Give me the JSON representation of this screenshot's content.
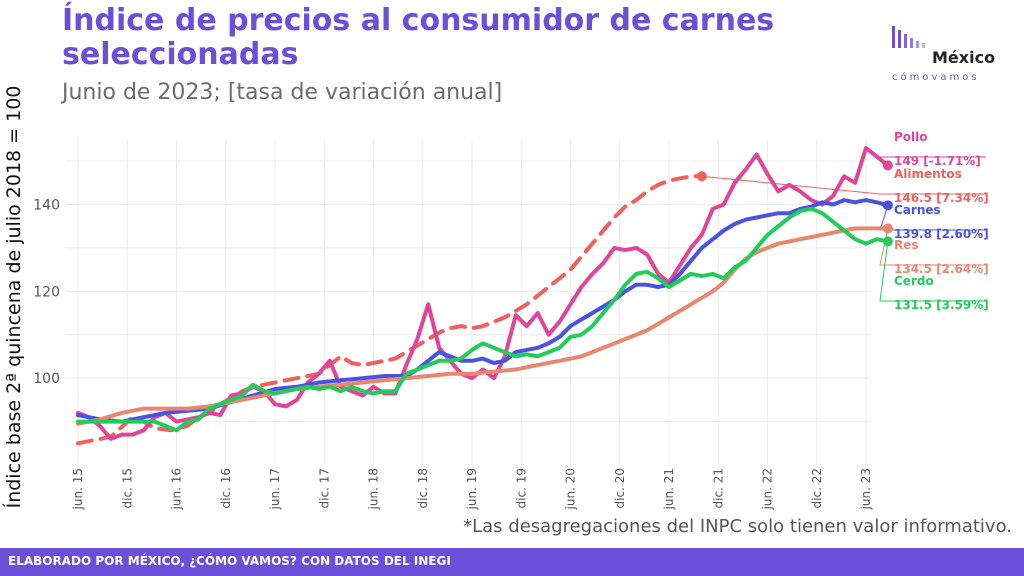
{
  "header": {
    "title": "Índice de precios al consumidor de carnes seleccionadas",
    "subtitle": "Junio de 2023; [tasa de variación anual]"
  },
  "logo": {
    "name": "México",
    "tagline": "cómovamos"
  },
  "note": "*Las desagregaciones del INPC solo tienen valor informativo.",
  "footer": "ELABORADO POR MÉXICO, ¿CÓMO VAMOS? CON DATOS DEL INEGI",
  "chart_data": {
    "type": "line",
    "ylabel": "Índice base 2ª quincena de julio 2018 = 100",
    "ylim": [
      80,
      156
    ],
    "y_ticks": [
      100,
      120,
      140
    ],
    "x_ticks": [
      "jun. 15",
      "dic. 15",
      "jun. 16",
      "dic. 16",
      "jun. 17",
      "dic. 17",
      "jun. 18",
      "dic. 18",
      "jun. 19",
      "dic. 19",
      "jun. 20",
      "dic. 20",
      "jun. 21",
      "dic. 21",
      "jun. 22",
      "dic. 22",
      "jun. 23"
    ],
    "x_start": "jun. 15",
    "x_end": "jun. 23",
    "grid": true,
    "series": [
      {
        "name": "Alimentos",
        "color": "#f0605f",
        "dash": true,
        "end_label": "146.5 [7.34%]",
        "points": [
          [
            0,
            85
          ],
          [
            6,
            86.5
          ],
          [
            10,
            91
          ],
          [
            12,
            90
          ],
          [
            14,
            88.5
          ],
          [
            17,
            88
          ],
          [
            20,
            89
          ],
          [
            22,
            91
          ],
          [
            24,
            92
          ],
          [
            26,
            94
          ],
          [
            28,
            95.5
          ],
          [
            30,
            97
          ],
          [
            32,
            98
          ],
          [
            34,
            98.5
          ],
          [
            36,
            99
          ],
          [
            38,
            99.5
          ],
          [
            40,
            100
          ],
          [
            42,
            100.5
          ],
          [
            44,
            101
          ],
          [
            46,
            103
          ],
          [
            48,
            105
          ],
          [
            50,
            103.5
          ],
          [
            52,
            103
          ],
          [
            54,
            103.5
          ],
          [
            56,
            104
          ],
          [
            58,
            104.5
          ],
          [
            60,
            106
          ],
          [
            62,
            107.5
          ],
          [
            64,
            109
          ],
          [
            66,
            110.5
          ],
          [
            68,
            111.5
          ],
          [
            70,
            112
          ],
          [
            72,
            111.5
          ],
          [
            74,
            112
          ],
          [
            76,
            113
          ],
          [
            78,
            114
          ],
          [
            80,
            115.5
          ],
          [
            82,
            117
          ],
          [
            84,
            119
          ],
          [
            86,
            121
          ],
          [
            88,
            123
          ],
          [
            90,
            125
          ],
          [
            92,
            128
          ],
          [
            94,
            131
          ],
          [
            96,
            134
          ],
          [
            98,
            137
          ],
          [
            100,
            139.5
          ],
          [
            102,
            141
          ],
          [
            104,
            143
          ],
          [
            106,
            144.5
          ],
          [
            108,
            145.5
          ],
          [
            110,
            146
          ],
          [
            112,
            146.5
          ],
          [
            114,
            146.5
          ]
        ]
      },
      {
        "name": "Pollo",
        "color": "#e0459a",
        "end_label": "149 [-1.71%]",
        "points": [
          [
            0,
            92
          ],
          [
            2,
            91
          ],
          [
            4,
            89
          ],
          [
            6,
            86
          ],
          [
            8,
            87
          ],
          [
            10,
            87
          ],
          [
            12,
            88
          ],
          [
            14,
            91
          ],
          [
            16,
            92
          ],
          [
            18,
            90
          ],
          [
            20,
            90.5
          ],
          [
            22,
            91
          ],
          [
            24,
            92
          ],
          [
            26,
            91.5
          ],
          [
            28,
            96
          ],
          [
            30,
            96.5
          ],
          [
            32,
            98
          ],
          [
            34,
            97
          ],
          [
            36,
            94
          ],
          [
            38,
            93.5
          ],
          [
            40,
            95
          ],
          [
            42,
            99
          ],
          [
            44,
            101
          ],
          [
            46,
            104
          ],
          [
            48,
            98
          ],
          [
            50,
            97
          ],
          [
            52,
            96
          ],
          [
            54,
            98
          ],
          [
            56,
            96.5
          ],
          [
            58,
            96.5
          ],
          [
            60,
            103
          ],
          [
            62,
            109
          ],
          [
            64,
            117
          ],
          [
            66,
            107
          ],
          [
            68,
            104
          ],
          [
            70,
            101
          ],
          [
            72,
            100
          ],
          [
            74,
            102
          ],
          [
            76,
            100
          ],
          [
            78,
            105
          ],
          [
            80,
            114.5
          ],
          [
            82,
            112
          ],
          [
            84,
            115
          ],
          [
            86,
            110
          ],
          [
            88,
            113
          ],
          [
            90,
            117
          ],
          [
            92,
            121
          ],
          [
            94,
            124
          ],
          [
            96,
            126.5
          ],
          [
            98,
            130
          ],
          [
            100,
            129.5
          ],
          [
            102,
            130
          ],
          [
            104,
            128.5
          ],
          [
            106,
            124
          ],
          [
            108,
            122
          ],
          [
            110,
            126
          ],
          [
            112,
            130
          ],
          [
            114,
            133
          ],
          [
            116,
            139
          ],
          [
            118,
            140
          ],
          [
            120,
            145
          ],
          [
            122,
            148
          ],
          [
            124,
            151.5
          ],
          [
            126,
            147
          ],
          [
            128,
            143
          ],
          [
            130,
            144.5
          ],
          [
            132,
            143
          ],
          [
            134,
            141
          ],
          [
            136,
            140
          ],
          [
            138,
            142
          ],
          [
            140,
            146.5
          ],
          [
            142,
            145
          ],
          [
            144,
            153
          ],
          [
            146,
            151
          ],
          [
            148,
            149
          ]
        ]
      },
      {
        "name": "Carnes",
        "color": "#4a53e0",
        "end_label": "139.8 [2.60%]",
        "points": [
          [
            0,
            91.5
          ],
          [
            4,
            90.5
          ],
          [
            8,
            90
          ],
          [
            12,
            91
          ],
          [
            16,
            92
          ],
          [
            20,
            92.5
          ],
          [
            24,
            93
          ],
          [
            28,
            94.5
          ],
          [
            32,
            96
          ],
          [
            36,
            97.5
          ],
          [
            40,
            98
          ],
          [
            44,
            99
          ],
          [
            48,
            99.5
          ],
          [
            52,
            100
          ],
          [
            56,
            100.5
          ],
          [
            60,
            100.5
          ],
          [
            62,
            102
          ],
          [
            64,
            104
          ],
          [
            66,
            106
          ],
          [
            68,
            105
          ],
          [
            70,
            104
          ],
          [
            72,
            104
          ],
          [
            74,
            104.5
          ],
          [
            76,
            103.5
          ],
          [
            78,
            104
          ],
          [
            80,
            106
          ],
          [
            82,
            106.5
          ],
          [
            84,
            107
          ],
          [
            86,
            108
          ],
          [
            88,
            109.5
          ],
          [
            90,
            112
          ],
          [
            92,
            113.5
          ],
          [
            94,
            115
          ],
          [
            96,
            116.5
          ],
          [
            98,
            118
          ],
          [
            100,
            120
          ],
          [
            102,
            121.5
          ],
          [
            104,
            121.5
          ],
          [
            106,
            121
          ],
          [
            108,
            121.5
          ],
          [
            110,
            124
          ],
          [
            112,
            127
          ],
          [
            114,
            130
          ],
          [
            116,
            132
          ],
          [
            118,
            134
          ],
          [
            120,
            135.5
          ],
          [
            122,
            136.5
          ],
          [
            124,
            137
          ],
          [
            126,
            137.5
          ],
          [
            128,
            138
          ],
          [
            130,
            138
          ],
          [
            132,
            139
          ],
          [
            134,
            139.5
          ],
          [
            136,
            140.5
          ],
          [
            138,
            140
          ],
          [
            140,
            141
          ],
          [
            142,
            140.5
          ],
          [
            144,
            141
          ],
          [
            146,
            140.5
          ],
          [
            148,
            139.8
          ]
        ]
      },
      {
        "name": "Res",
        "color": "#e8876f",
        "end_label": "134.5 [2.64%]",
        "points": [
          [
            0,
            89.5
          ],
          [
            4,
            90.5
          ],
          [
            8,
            92
          ],
          [
            12,
            93
          ],
          [
            16,
            93
          ],
          [
            20,
            93
          ],
          [
            24,
            93.5
          ],
          [
            28,
            94.5
          ],
          [
            32,
            95.5
          ],
          [
            36,
            96.5
          ],
          [
            40,
            97.5
          ],
          [
            44,
            98
          ],
          [
            48,
            98.5
          ],
          [
            52,
            99
          ],
          [
            56,
            99.5
          ],
          [
            60,
            100
          ],
          [
            64,
            100.5
          ],
          [
            68,
            101
          ],
          [
            72,
            101
          ],
          [
            76,
            101.5
          ],
          [
            80,
            102
          ],
          [
            84,
            103
          ],
          [
            88,
            104
          ],
          [
            92,
            105
          ],
          [
            96,
            107
          ],
          [
            100,
            109
          ],
          [
            104,
            111
          ],
          [
            108,
            114
          ],
          [
            112,
            117
          ],
          [
            116,
            120
          ],
          [
            118,
            122
          ],
          [
            120,
            125
          ],
          [
            122,
            127.5
          ],
          [
            124,
            129
          ],
          [
            126,
            130
          ],
          [
            128,
            131
          ],
          [
            130,
            131.5
          ],
          [
            132,
            132
          ],
          [
            134,
            132.5
          ],
          [
            136,
            133
          ],
          [
            138,
            133.5
          ],
          [
            140,
            134
          ],
          [
            142,
            134.5
          ],
          [
            144,
            134.5
          ],
          [
            146,
            134.5
          ],
          [
            148,
            134.5
          ]
        ]
      },
      {
        "name": "Cerdo",
        "color": "#22cc5a",
        "end_label": "131.5 [3.59%]",
        "points": [
          [
            0,
            90
          ],
          [
            3,
            90
          ],
          [
            6,
            90
          ],
          [
            9,
            90
          ],
          [
            12,
            90
          ],
          [
            14,
            90
          ],
          [
            16,
            89
          ],
          [
            18,
            88
          ],
          [
            20,
            90
          ],
          [
            22,
            90.5
          ],
          [
            24,
            93
          ],
          [
            26,
            94
          ],
          [
            28,
            95
          ],
          [
            30,
            96
          ],
          [
            32,
            98.5
          ],
          [
            34,
            97
          ],
          [
            36,
            96.5
          ],
          [
            38,
            97
          ],
          [
            40,
            97.5
          ],
          [
            42,
            98
          ],
          [
            44,
            97.5
          ],
          [
            46,
            98
          ],
          [
            48,
            97
          ],
          [
            50,
            98
          ],
          [
            52,
            97
          ],
          [
            54,
            96.5
          ],
          [
            56,
            97
          ],
          [
            58,
            97
          ],
          [
            60,
            101
          ],
          [
            62,
            102
          ],
          [
            64,
            103
          ],
          [
            66,
            104
          ],
          [
            68,
            104
          ],
          [
            70,
            104.5
          ],
          [
            72,
            106.5
          ],
          [
            74,
            108
          ],
          [
            76,
            107
          ],
          [
            78,
            106
          ],
          [
            80,
            105
          ],
          [
            82,
            105.5
          ],
          [
            84,
            105
          ],
          [
            86,
            106
          ],
          [
            88,
            107
          ],
          [
            90,
            109.5
          ],
          [
            92,
            110
          ],
          [
            94,
            112
          ],
          [
            96,
            115
          ],
          [
            98,
            118
          ],
          [
            100,
            121.5
          ],
          [
            102,
            124
          ],
          [
            104,
            124.5
          ],
          [
            106,
            123
          ],
          [
            108,
            121
          ],
          [
            110,
            122.5
          ],
          [
            112,
            124
          ],
          [
            114,
            123.5
          ],
          [
            116,
            124
          ],
          [
            118,
            123
          ],
          [
            120,
            125.5
          ],
          [
            122,
            127
          ],
          [
            124,
            130
          ],
          [
            126,
            133
          ],
          [
            128,
            135
          ],
          [
            130,
            137
          ],
          [
            132,
            138.5
          ],
          [
            134,
            139
          ],
          [
            136,
            138
          ],
          [
            138,
            136
          ],
          [
            140,
            134
          ],
          [
            142,
            132
          ],
          [
            144,
            131
          ],
          [
            146,
            132
          ],
          [
            148,
            131.5
          ]
        ]
      }
    ]
  }
}
